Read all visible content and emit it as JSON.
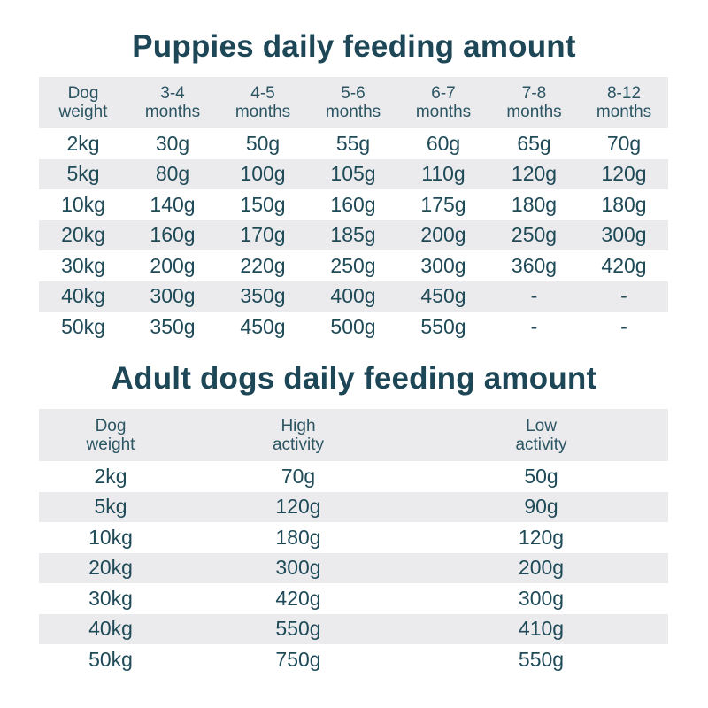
{
  "puppies": {
    "title": "Puppies daily feeding amount",
    "columns": [
      [
        "Dog",
        "weight"
      ],
      [
        "3-4",
        "months"
      ],
      [
        "4-5",
        "months"
      ],
      [
        "5-6",
        "months"
      ],
      [
        "6-7",
        "months"
      ],
      [
        "7-8",
        "months"
      ],
      [
        "8-12",
        "months"
      ]
    ],
    "rows": [
      [
        "2kg",
        "30g",
        "50g",
        "55g",
        "60g",
        "65g",
        "70g"
      ],
      [
        "5kg",
        "80g",
        "100g",
        "105g",
        "110g",
        "120g",
        "120g"
      ],
      [
        "10kg",
        "140g",
        "150g",
        "160g",
        "175g",
        "180g",
        "180g"
      ],
      [
        "20kg",
        "160g",
        "170g",
        "185g",
        "200g",
        "250g",
        "300g"
      ],
      [
        "30kg",
        "200g",
        "220g",
        "250g",
        "300g",
        "360g",
        "420g"
      ],
      [
        "40kg",
        "300g",
        "350g",
        "400g",
        "450g",
        "-",
        "-"
      ],
      [
        "50kg",
        "350g",
        "450g",
        "500g",
        "550g",
        "-",
        "-"
      ]
    ]
  },
  "adults": {
    "title": "Adult dogs daily feeding amount",
    "columns": [
      [
        "Dog",
        "weight"
      ],
      [
        "High",
        "activity"
      ],
      [
        "Low",
        "activity"
      ]
    ],
    "rows": [
      [
        "2kg",
        "70g",
        "50g"
      ],
      [
        "5kg",
        "120g",
        "90g"
      ],
      [
        "10kg",
        "180g",
        "120g"
      ],
      [
        "20kg",
        "300g",
        "200g"
      ],
      [
        "30kg",
        "420g",
        "300g"
      ],
      [
        "40kg",
        "550g",
        "410g"
      ],
      [
        "50kg",
        "750g",
        "550g"
      ]
    ]
  }
}
